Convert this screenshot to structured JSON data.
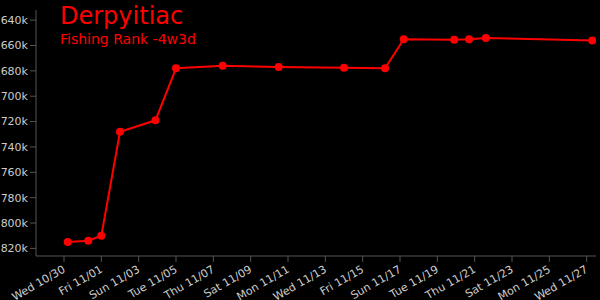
{
  "chart_data": {
    "type": "line",
    "title": "Derpyitiac",
    "subtitle": "Fishing Rank -4w3d",
    "x": [
      0.2,
      1.3,
      2.0,
      3.0,
      4.9,
      6.0,
      8.5,
      11.5,
      15.0,
      17.2,
      18.2,
      20.9,
      21.7,
      22.6,
      28.3
    ],
    "values": [
      815000,
      814000,
      810000,
      728000,
      719000,
      678000,
      676000,
      677000,
      677500,
      678000,
      655000,
      655500,
      655000,
      654000,
      656000
    ],
    "color": "#ff0000",
    "marker": "circle",
    "xlim": [
      -1.5,
      28.5
    ],
    "xticks": [
      {
        "value": 0,
        "label": "Wed 10/30"
      },
      {
        "value": 2,
        "label": "Fri 11/01"
      },
      {
        "value": 4,
        "label": "Sun 11/03"
      },
      {
        "value": 6,
        "label": "Tue 11/05"
      },
      {
        "value": 8,
        "label": "Thu 11/07"
      },
      {
        "value": 10,
        "label": "Sat 11/09"
      },
      {
        "value": 12,
        "label": "Mon 11/11"
      },
      {
        "value": 14,
        "label": "Wed 11/13"
      },
      {
        "value": 16,
        "label": "Fri 11/15"
      },
      {
        "value": 18,
        "label": "Sun 11/17"
      },
      {
        "value": 20,
        "label": "Tue 11/19"
      },
      {
        "value": 22,
        "label": "Thu 11/21"
      },
      {
        "value": 24,
        "label": "Sat 11/23"
      },
      {
        "value": 26,
        "label": "Mon 11/25"
      },
      {
        "value": 28,
        "label": "Wed 11/27"
      }
    ],
    "ylim": [
      632000,
      826000
    ],
    "yticks": [
      {
        "value": 640000,
        "label": "640k"
      },
      {
        "value": 660000,
        "label": "660k"
      },
      {
        "value": 680000,
        "label": "680k"
      },
      {
        "value": 700000,
        "label": "700k"
      },
      {
        "value": 720000,
        "label": "720k"
      },
      {
        "value": 740000,
        "label": "740k"
      },
      {
        "value": 760000,
        "label": "760k"
      },
      {
        "value": 780000,
        "label": "780k"
      },
      {
        "value": 800000,
        "label": "800k"
      },
      {
        "value": 820000,
        "label": "820k"
      }
    ],
    "grid": false
  }
}
